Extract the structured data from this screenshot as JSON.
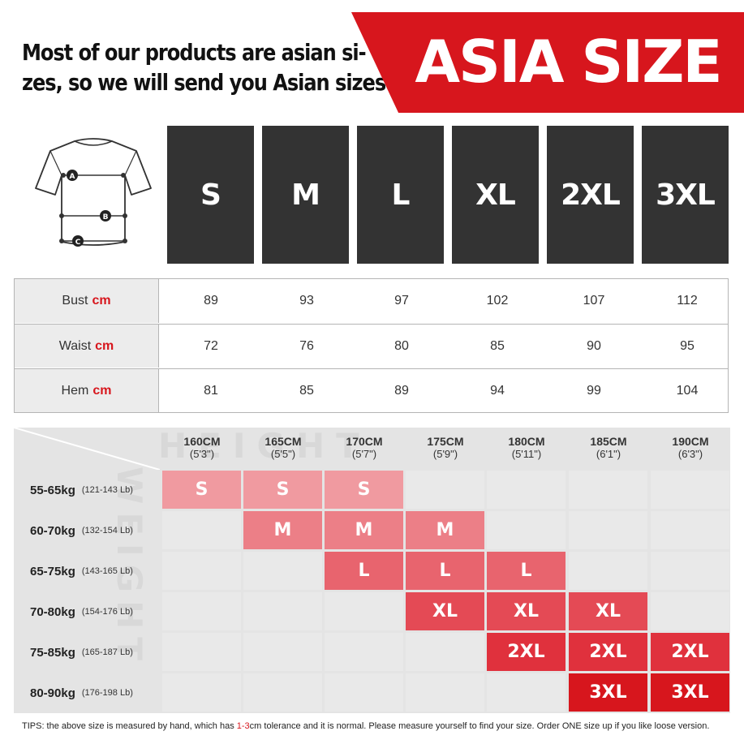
{
  "header": {
    "intro_line1": "Most of our products are asian si-",
    "intro_line2": "zes, so we will send you Asian sizes",
    "banner": "ASIA SIZE"
  },
  "jersey": {
    "markers": [
      "A",
      "B",
      "C"
    ]
  },
  "sizes": [
    "S",
    "M",
    "L",
    "XL",
    "2XL",
    "3XL"
  ],
  "measurements": [
    {
      "label": "Bust",
      "unit": "cm",
      "values": [
        "89",
        "93",
        "97",
        "102",
        "107",
        "112"
      ]
    },
    {
      "label": "Waist",
      "unit": "cm",
      "values": [
        "72",
        "76",
        "80",
        "85",
        "90",
        "95"
      ]
    },
    {
      "label": "Hem",
      "unit": "cm",
      "values": [
        "81",
        "85",
        "89",
        "94",
        "99",
        "104"
      ]
    }
  ],
  "chart": {
    "watermark_height": "HEIGHT",
    "watermark_weight": "WEIGHT",
    "heights": [
      {
        "cm": "160CM",
        "ft": "(5'3\")"
      },
      {
        "cm": "165CM",
        "ft": "(5'5\")"
      },
      {
        "cm": "170CM",
        "ft": "(5'7\")"
      },
      {
        "cm": "175CM",
        "ft": "(5'9\")"
      },
      {
        "cm": "180CM",
        "ft": "(5'11\")"
      },
      {
        "cm": "185CM",
        "ft": "(6'1\")"
      },
      {
        "cm": "190CM",
        "ft": "(6'3\")"
      }
    ],
    "weights": [
      {
        "kg": "55-65kg",
        "lb": "(121-143 Lb)",
        "cells": [
          "S",
          "S",
          "S",
          "",
          "",
          "",
          ""
        ]
      },
      {
        "kg": "60-70kg",
        "lb": "(132-154 Lb)",
        "cells": [
          "",
          "M",
          "M",
          "M",
          "",
          "",
          ""
        ]
      },
      {
        "kg": "65-75kg",
        "lb": "(143-165 Lb)",
        "cells": [
          "",
          "",
          "L",
          "L",
          "L",
          "",
          ""
        ]
      },
      {
        "kg": "70-80kg",
        "lb": "(154-176 Lb)",
        "cells": [
          "",
          "",
          "",
          "XL",
          "XL",
          "XL",
          ""
        ]
      },
      {
        "kg": "75-85kg",
        "lb": "(165-187 Lb)",
        "cells": [
          "",
          "",
          "",
          "",
          "2XL",
          "2XL",
          "2XL"
        ]
      },
      {
        "kg": "80-90kg",
        "lb": "(176-198 Lb)",
        "cells": [
          "",
          "",
          "",
          "",
          "",
          "3XL",
          "3XL"
        ]
      }
    ],
    "size_colors": {
      "S": "#f09aa0",
      "M": "#ec7f87",
      "L": "#e8646e",
      "XL": "#e44a55",
      "2XL": "#e0313d",
      "3XL": "#d7161d"
    }
  },
  "tips": {
    "prefix": "TIPS:  the above size is measured by hand, which has ",
    "highlight": "1-3",
    "suffix": "cm tolerance and it is normal. Please measure yourself to find your size. Order ONE size up if you like loose version."
  },
  "colors": {
    "accent": "#d7161d",
    "box": "#333333"
  }
}
